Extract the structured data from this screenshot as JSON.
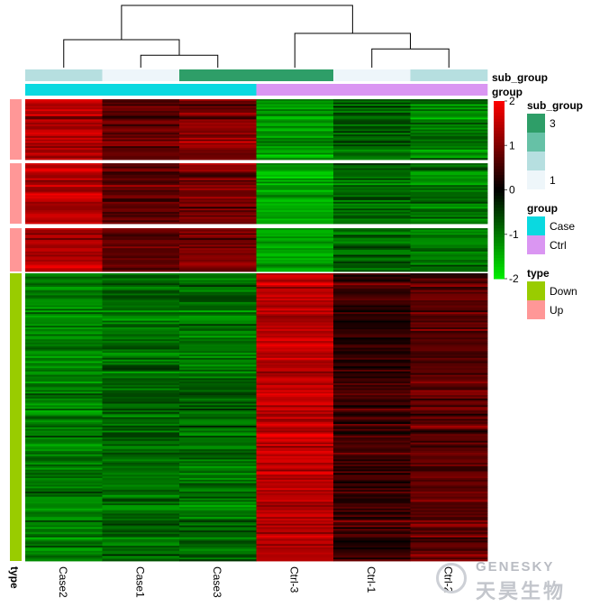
{
  "chart_data": {
    "type": "heatmap",
    "columns": [
      "Case2",
      "Case1",
      "Case3",
      "Ctrl-3",
      "Ctrl-1",
      "Ctrl-2"
    ],
    "annotations": {
      "sub_group": {
        "label": "sub_group",
        "values": [
          2,
          1,
          3,
          3,
          1,
          2
        ],
        "legend": [
          {
            "level": 3,
            "label": "3",
            "color": "#2e9e68"
          },
          {
            "level": 2.5,
            "label": "",
            "color": "#66c1a6"
          },
          {
            "level": 2,
            "label": "",
            "color": "#b6dfe0"
          },
          {
            "level": 1,
            "label": "1",
            "color": "#eef6fa"
          }
        ]
      },
      "group": {
        "label": "group",
        "values": [
          "Case",
          "Case",
          "Case",
          "Ctrl",
          "Ctrl",
          "Ctrl"
        ],
        "legend": [
          {
            "label": "Case",
            "color": "#0ad9e0"
          },
          {
            "label": "Ctrl",
            "color": "#da96f2"
          }
        ]
      },
      "type": {
        "label": "type",
        "legend": [
          {
            "label": "Down",
            "color": "#99cc00"
          },
          {
            "label": "Up",
            "color": "#ff9797"
          }
        ]
      }
    },
    "row_blocks": [
      {
        "type": "Up",
        "rows": 36,
        "pattern": [
          1.35,
          0.75,
          1.1,
          -1.25,
          -0.75,
          -1.05
        ]
      },
      {
        "type": "Up",
        "rows": 36,
        "pattern": [
          1.45,
          0.75,
          1.0,
          -1.3,
          -0.8,
          -1.0
        ]
      },
      {
        "type": "Up",
        "rows": 26,
        "pattern": [
          1.4,
          0.85,
          0.95,
          -1.3,
          -0.8,
          -0.95
        ]
      },
      {
        "type": "Down",
        "rows": 170,
        "pattern": [
          -1.05,
          -0.85,
          -0.9,
          1.45,
          0.45,
          0.75
        ]
      }
    ],
    "color_scale": {
      "min": -2,
      "mid": 0,
      "max": 2,
      "low_color": "#00ee00",
      "mid_color": "#000000",
      "high_color": "#ff0000",
      "ticks": [
        2,
        1,
        0,
        -1,
        -2
      ]
    },
    "dendrogram": {
      "merges": [
        {
          "left": "Case1",
          "right": "Case3",
          "height": 0.2
        },
        {
          "left": "Case2",
          "right": "merge0",
          "height": 0.45
        },
        {
          "left": "Ctrl-1",
          "right": "Ctrl-2",
          "height": 0.3
        },
        {
          "left": "Ctrl-3",
          "right": "merge2",
          "height": 0.55
        },
        {
          "left": "merge1",
          "right": "merge3",
          "height": 1.0
        }
      ]
    }
  },
  "text": {
    "sub_group_label": "sub_group",
    "group_label": "group",
    "type_axis_label": "type",
    "legend_sub_group_title": "sub_group",
    "legend_group_title": "group",
    "legend_type_title": "type"
  },
  "watermark": {
    "brand_en": "GENESKY",
    "brand_cn": "天昊生物"
  }
}
